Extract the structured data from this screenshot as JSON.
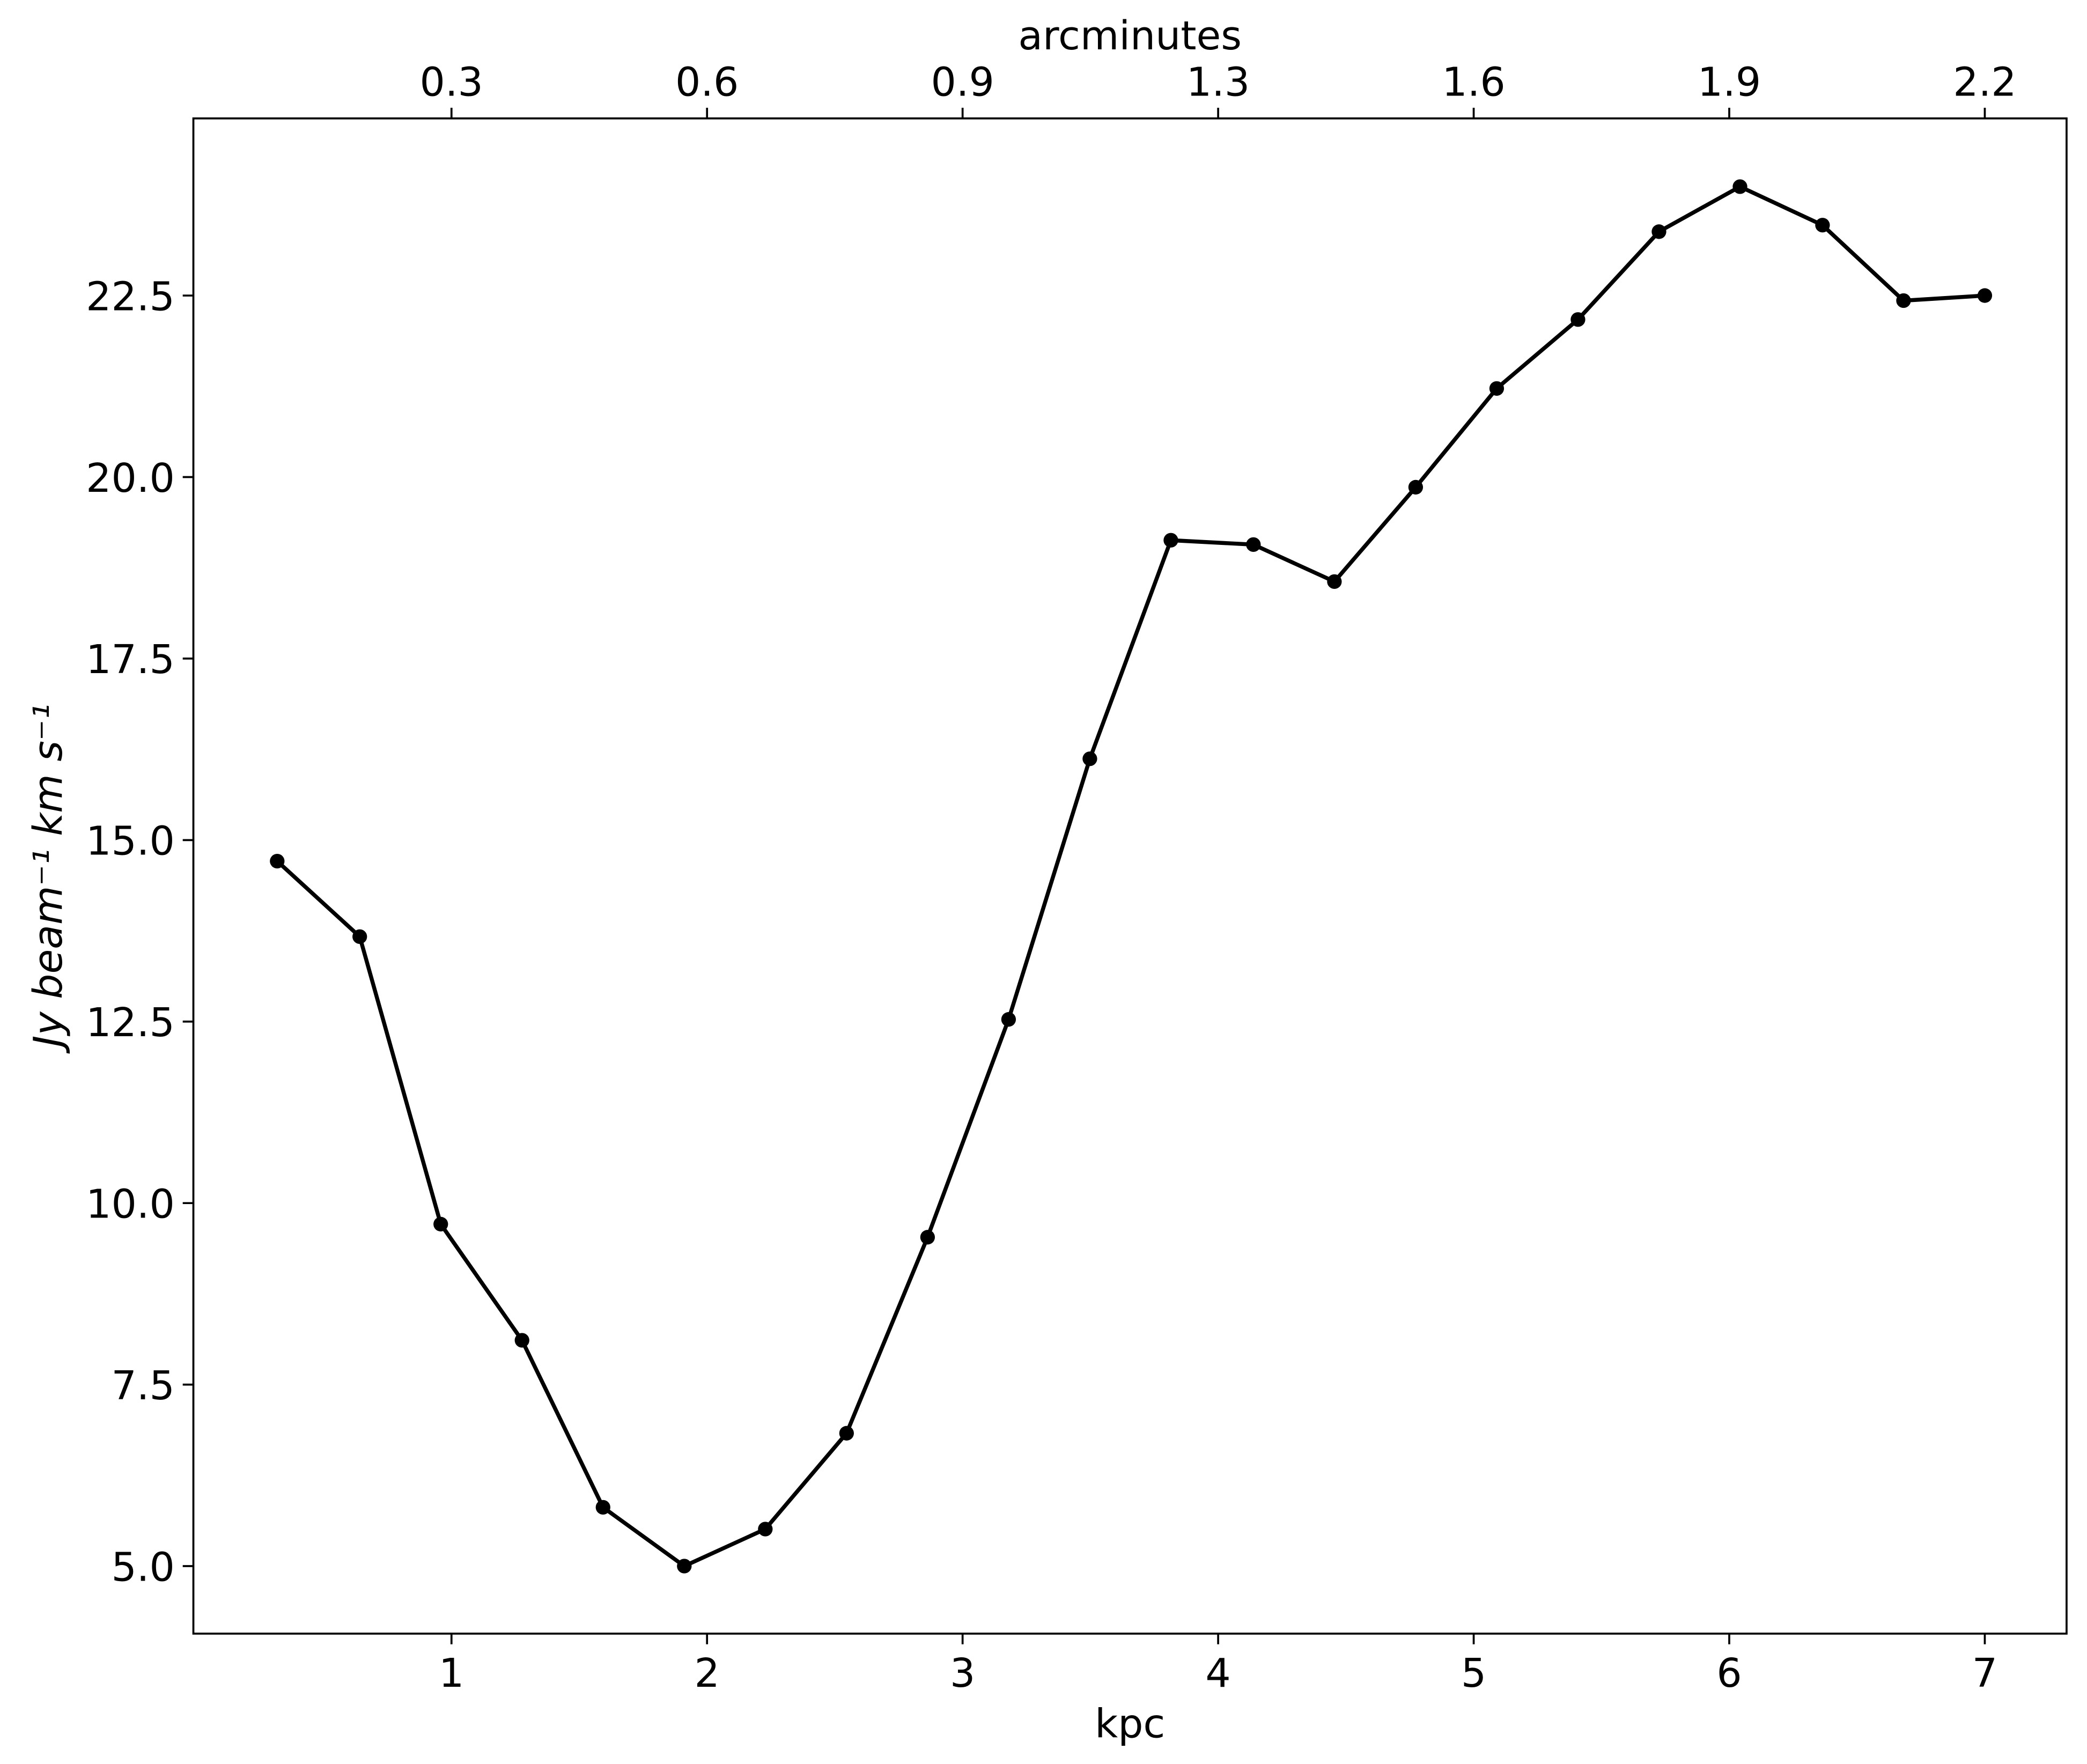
{
  "chart_data": {
    "type": "line",
    "xlabel": "kpc",
    "x2label": "arcminutes",
    "ylabel": "Jy beam⁻¹ km s⁻¹",
    "x": [
      0.318,
      0.641,
      0.958,
      1.276,
      1.593,
      1.911,
      2.228,
      2.546,
      2.863,
      3.18,
      3.498,
      3.815,
      4.138,
      4.455,
      4.773,
      5.09,
      5.408,
      5.725,
      6.042,
      6.365,
      6.682,
      7.0
    ],
    "series": [
      {
        "color": "#000000",
        "values": [
          14.71,
          13.67,
          9.71,
          8.11,
          5.81,
          5.0,
          5.51,
          6.83,
          9.53,
          12.53,
          16.12,
          19.13,
          19.07,
          18.56,
          19.86,
          21.22,
          22.17,
          23.38,
          24.0,
          23.47,
          22.43,
          22.5
        ]
      }
    ],
    "xlim": [
      -0.01,
      7.32
    ],
    "xticks": [
      1,
      2,
      3,
      4,
      5,
      6,
      7
    ],
    "x2ticks": [
      {
        "value": 1,
        "label": "0.3"
      },
      {
        "value": 2,
        "label": "0.6"
      },
      {
        "value": 3,
        "label": "0.9"
      },
      {
        "value": 4,
        "label": "1.3"
      },
      {
        "value": 5,
        "label": "1.6"
      },
      {
        "value": 6,
        "label": "1.9"
      },
      {
        "value": 7,
        "label": "2.2"
      }
    ],
    "ylim": [
      4.07,
      24.94
    ],
    "yticks": [
      {
        "value": 5,
        "label": "5.0"
      },
      7.5,
      {
        "value": 10,
        "label": "10.0"
      },
      12.5,
      {
        "value": 15,
        "label": "15.0"
      },
      17.5,
      {
        "value": 20,
        "label": "20.0"
      },
      22.5
    ],
    "grid": false
  }
}
